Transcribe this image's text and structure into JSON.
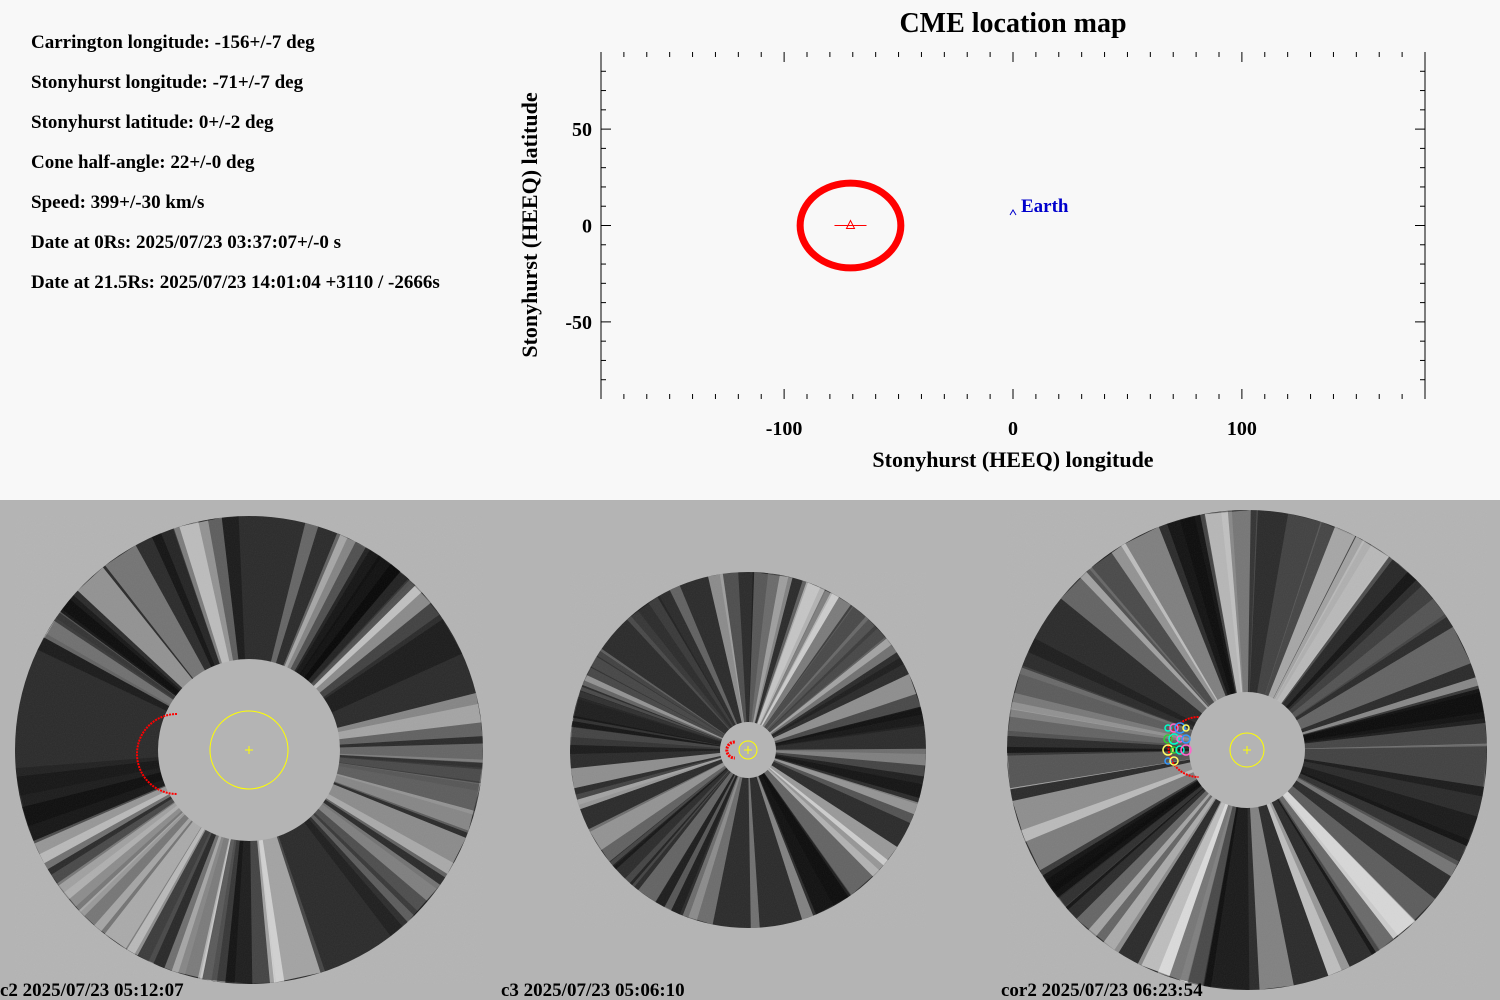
{
  "parameters": [
    "Carrington longitude: -156+/-7 deg",
    "Stonyhurst longitude: -71+/-7 deg",
    "Stonyhurst latitude: 0+/-2 deg",
    "Cone half-angle: 22+/-0 deg",
    "Speed: 399+/-30 km/s",
    "Date at 0Rs: 2025/07/23 03:37:07+/-0 s",
    "Date at 21.5Rs: 2025/07/23 14:01:04 +3110 / -2666s"
  ],
  "chart_data": {
    "type": "scatter",
    "title": "CME location map",
    "xlabel": "Stonyhurst (HEEQ) longitude",
    "ylabel": "Stonyhurst (HEEQ) latitude",
    "xlim": [
      -180,
      180
    ],
    "ylim": [
      -90,
      90
    ],
    "xticks": [
      -100,
      0,
      100
    ],
    "yticks": [
      -50,
      0,
      50
    ],
    "x_minor_step": 10,
    "y_minor_step": 10,
    "grid": false,
    "cme": {
      "longitude": -71,
      "latitude": 0,
      "longitude_error": 7,
      "half_angle": 22,
      "color": "#ff0000"
    },
    "earth": {
      "label": "Earth",
      "longitude": 0,
      "latitude": 7,
      "color": "#0000cc"
    }
  },
  "panels": [
    {
      "label": "c2 2025/07/23 05:12:07",
      "instrument": "c2"
    },
    {
      "label": "c3 2025/07/23 05:06:10",
      "instrument": "c3"
    },
    {
      "label": "cor2 2025/07/23 06:23:54",
      "instrument": "cor2"
    }
  ],
  "colors": {
    "background_top": "#f8f8f8",
    "background_bottom": "#b4b4b4",
    "sun_outline": "#ffff00",
    "cme_overlay": "#ff0000"
  }
}
